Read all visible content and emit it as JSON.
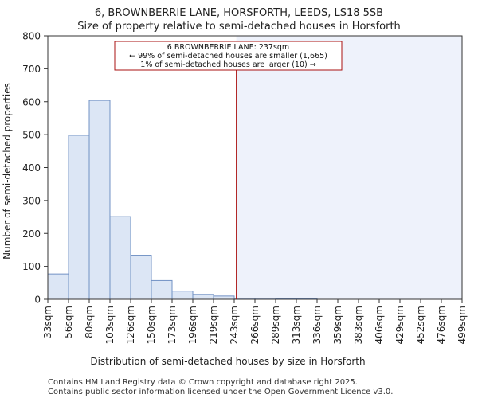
{
  "chart_data": {
    "type": "bar",
    "title_line1": "6, BROWNBERRIE LANE, HORSFORTH, LEEDS, LS18 5SB",
    "title_line2": "Size of property relative to semi-detached houses in Horsforth",
    "xlabel": "Distribution of semi-detached houses by size in Horsforth",
    "ylabel": "Number of semi-detached properties",
    "ylim": [
      0,
      800
    ],
    "yticks": [
      0,
      100,
      200,
      300,
      400,
      500,
      600,
      700,
      800
    ],
    "bin_edges": [
      "33sqm",
      "56sqm",
      "80sqm",
      "103sqm",
      "126sqm",
      "150sqm",
      "173sqm",
      "196sqm",
      "219sqm",
      "243sqm",
      "266sqm",
      "289sqm",
      "313sqm",
      "336sqm",
      "359sqm",
      "383sqm",
      "406sqm",
      "429sqm",
      "452sqm",
      "476sqm",
      "499sqm"
    ],
    "values": [
      77,
      498,
      604,
      251,
      134,
      57,
      25,
      15,
      10,
      3,
      3,
      2,
      2,
      0,
      0,
      0,
      0,
      0,
      0,
      0
    ],
    "property_bin_position": 9.1,
    "annotation": {
      "line1": "6 BROWNBERRIE LANE: 237sqm",
      "line2": "← 99% of semi-detached houses are smaller (1,665)",
      "line3": "1% of semi-detached houses are larger (10) →"
    },
    "colors": {
      "bar_fill": "#dce6f5",
      "bar_stroke": "#7191c4",
      "highlight_fill": "#eef2fb",
      "marker_line": "#aa1111",
      "annotation_border": "#aa1111"
    }
  },
  "footer": {
    "line1": "Contains HM Land Registry data © Crown copyright and database right 2025.",
    "line2": "Contains public sector information licensed under the Open Government Licence v3.0."
  }
}
